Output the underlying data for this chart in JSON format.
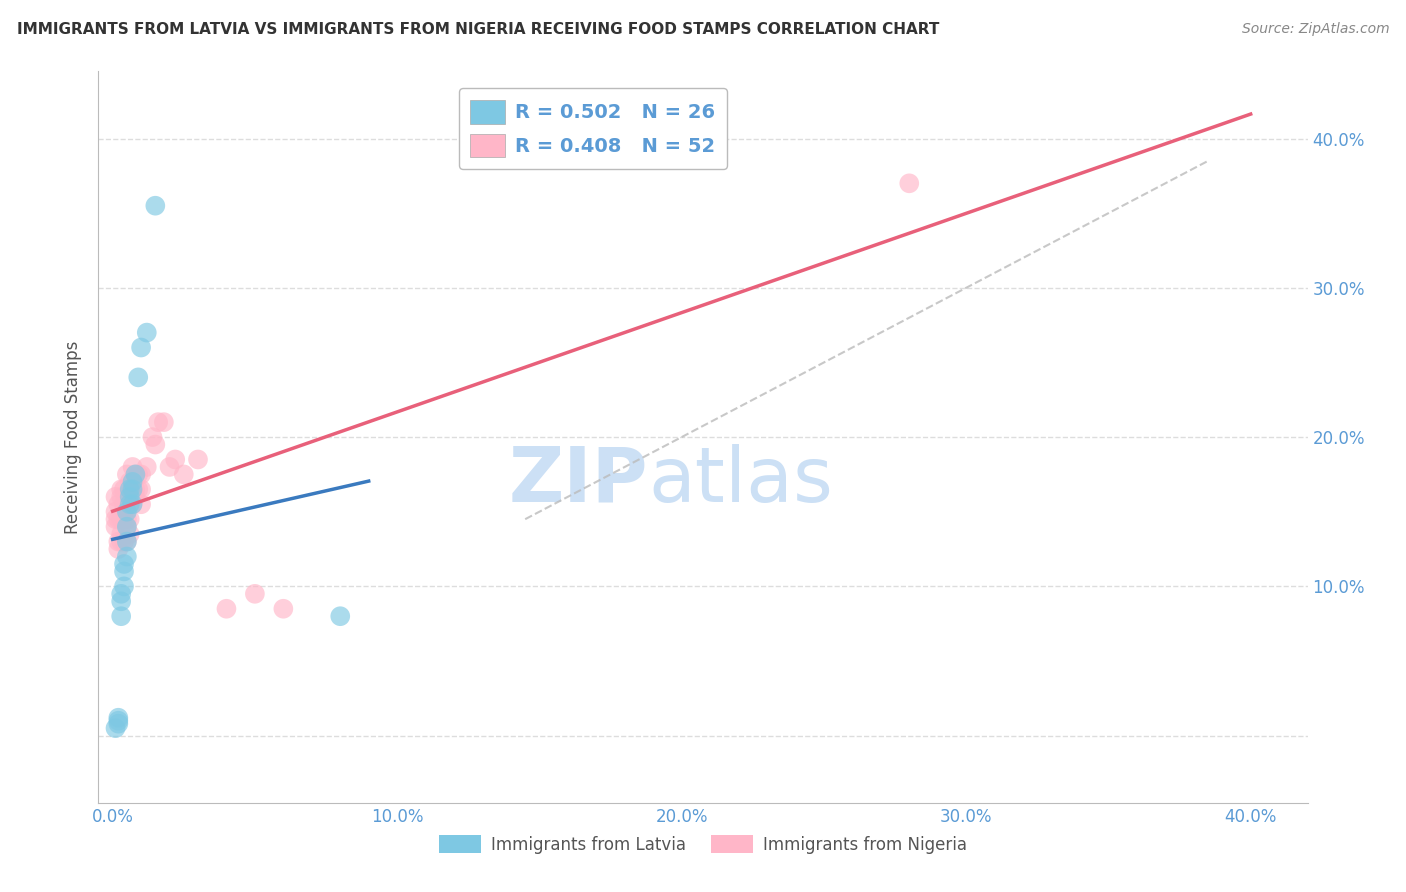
{
  "title": "IMMIGRANTS FROM LATVIA VS IMMIGRANTS FROM NIGERIA RECEIVING FOOD STAMPS CORRELATION CHART",
  "source": "Source: ZipAtlas.com",
  "ylabel": "Receiving Food Stamps",
  "ytick_vals": [
    0.0,
    0.1,
    0.2,
    0.3,
    0.4
  ],
  "ytick_labels": [
    "",
    "10.0%",
    "20.0%",
    "30.0%",
    "40.0%"
  ],
  "xtick_vals": [
    0.0,
    0.1,
    0.2,
    0.3,
    0.4
  ],
  "xtick_labels": [
    "0.0%",
    "10.0%",
    "20.0%",
    "30.0%",
    "40.0%"
  ],
  "xlim": [
    -0.005,
    0.42
  ],
  "ylim": [
    -0.045,
    0.445
  ],
  "legend_latvia_r": "R = 0.502",
  "legend_latvia_n": "N = 26",
  "legend_nigeria_r": "R = 0.408",
  "legend_nigeria_n": "N = 52",
  "legend_label_latvia": "Immigrants from Latvia",
  "legend_label_nigeria": "Immigrants from Nigeria",
  "color_latvia": "#7ec8e3",
  "color_nigeria": "#ffb6c8",
  "color_latvia_line": "#3a7abf",
  "color_nigeria_line": "#e8607a",
  "color_axis_labels": "#5b9bd5",
  "background_color": "#ffffff",
  "watermark_zip": "ZIP",
  "watermark_atlas": "atlas",
  "watermark_color": "#cce0f5",
  "grid_color": "#dddddd",
  "latvia_x": [
    0.001,
    0.002,
    0.002,
    0.002,
    0.003,
    0.003,
    0.003,
    0.004,
    0.004,
    0.004,
    0.005,
    0.005,
    0.005,
    0.005,
    0.006,
    0.006,
    0.006,
    0.007,
    0.007,
    0.007,
    0.008,
    0.009,
    0.01,
    0.012,
    0.015,
    0.08
  ],
  "latvia_y": [
    0.005,
    0.008,
    0.01,
    0.012,
    0.08,
    0.09,
    0.095,
    0.1,
    0.11,
    0.115,
    0.12,
    0.13,
    0.14,
    0.15,
    0.155,
    0.16,
    0.165,
    0.155,
    0.165,
    0.17,
    0.175,
    0.24,
    0.26,
    0.27,
    0.355,
    0.08
  ],
  "nigeria_x": [
    0.001,
    0.001,
    0.001,
    0.001,
    0.002,
    0.002,
    0.002,
    0.002,
    0.003,
    0.003,
    0.003,
    0.003,
    0.003,
    0.004,
    0.004,
    0.004,
    0.004,
    0.005,
    0.005,
    0.005,
    0.005,
    0.005,
    0.005,
    0.006,
    0.006,
    0.006,
    0.006,
    0.007,
    0.007,
    0.007,
    0.007,
    0.008,
    0.008,
    0.008,
    0.009,
    0.009,
    0.01,
    0.01,
    0.01,
    0.012,
    0.014,
    0.015,
    0.016,
    0.018,
    0.02,
    0.022,
    0.025,
    0.03,
    0.04,
    0.05,
    0.06,
    0.28
  ],
  "nigeria_y": [
    0.14,
    0.145,
    0.15,
    0.16,
    0.125,
    0.13,
    0.145,
    0.155,
    0.13,
    0.135,
    0.145,
    0.16,
    0.165,
    0.13,
    0.145,
    0.155,
    0.165,
    0.13,
    0.14,
    0.145,
    0.155,
    0.16,
    0.175,
    0.135,
    0.145,
    0.16,
    0.17,
    0.155,
    0.16,
    0.17,
    0.18,
    0.16,
    0.165,
    0.175,
    0.165,
    0.175,
    0.155,
    0.165,
    0.175,
    0.18,
    0.2,
    0.195,
    0.21,
    0.21,
    0.18,
    0.185,
    0.175,
    0.185,
    0.085,
    0.095,
    0.085,
    0.37
  ],
  "diag_line_x": [
    0.145,
    0.385
  ],
  "diag_line_y": [
    0.145,
    0.385
  ]
}
